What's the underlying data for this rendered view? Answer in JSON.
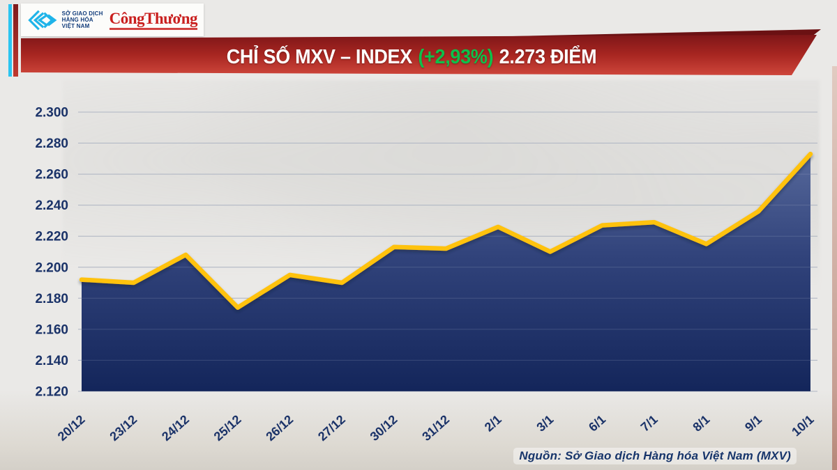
{
  "branding": {
    "mxv_name_lines": [
      "SỞ GIAO DỊCH",
      "HÀNG HÓA",
      "VIỆT NAM"
    ],
    "congthuong_wordmark": "CôngThương",
    "mxv_logo_color": "#1FB4E9",
    "congthuong_color": "#C9201F"
  },
  "banner": {
    "title_main": "CHỈ SỐ MXV – INDEX",
    "title_change": "(+2,93%)",
    "title_points": "2.273 ĐIỂM",
    "change_color": "#0FC04A",
    "bg_top": "#7E1618",
    "bg_bottom": "#CE463B"
  },
  "chart_data": {
    "type": "area",
    "title": "CHỈ SỐ MXV – INDEX (+2,93%) 2.273 ĐIỂM",
    "xlabel": "",
    "ylabel": "",
    "categories": [
      "20/12",
      "23/12",
      "24/12",
      "25/12",
      "26/12",
      "27/12",
      "30/12",
      "31/12",
      "2/1",
      "3/1",
      "6/1",
      "7/1",
      "8/1",
      "9/1",
      "10/1"
    ],
    "values": [
      2192,
      2190,
      2208,
      2174,
      2195,
      2190,
      2213,
      2212,
      2226,
      2210,
      2227,
      2229,
      2215,
      2236,
      2273
    ],
    "last_value_label": "2.273",
    "change_percent_label": "+2,93%",
    "ylim": [
      2120,
      2300
    ],
    "y_ticks": [
      2300,
      2280,
      2260,
      2240,
      2220,
      2200,
      2180,
      2160,
      2140,
      2120
    ],
    "y_tick_labels": [
      "2.300",
      "2.280",
      "2.260",
      "2.240",
      "2.220",
      "2.200",
      "2.180",
      "2.160",
      "2.140",
      "2.120"
    ],
    "grid": true,
    "legend": "none",
    "line_color": "#FFC20E",
    "fill_top": "#5A6C9E",
    "fill_mid": "#31437B",
    "fill_bottom": "#13255A",
    "gridline_color": "#A9AFBC",
    "axis_label_color": "#1A3268"
  },
  "footer": {
    "source": "Nguồn: Sở Giao dịch Hàng hóa Việt Nam (MXV)"
  }
}
